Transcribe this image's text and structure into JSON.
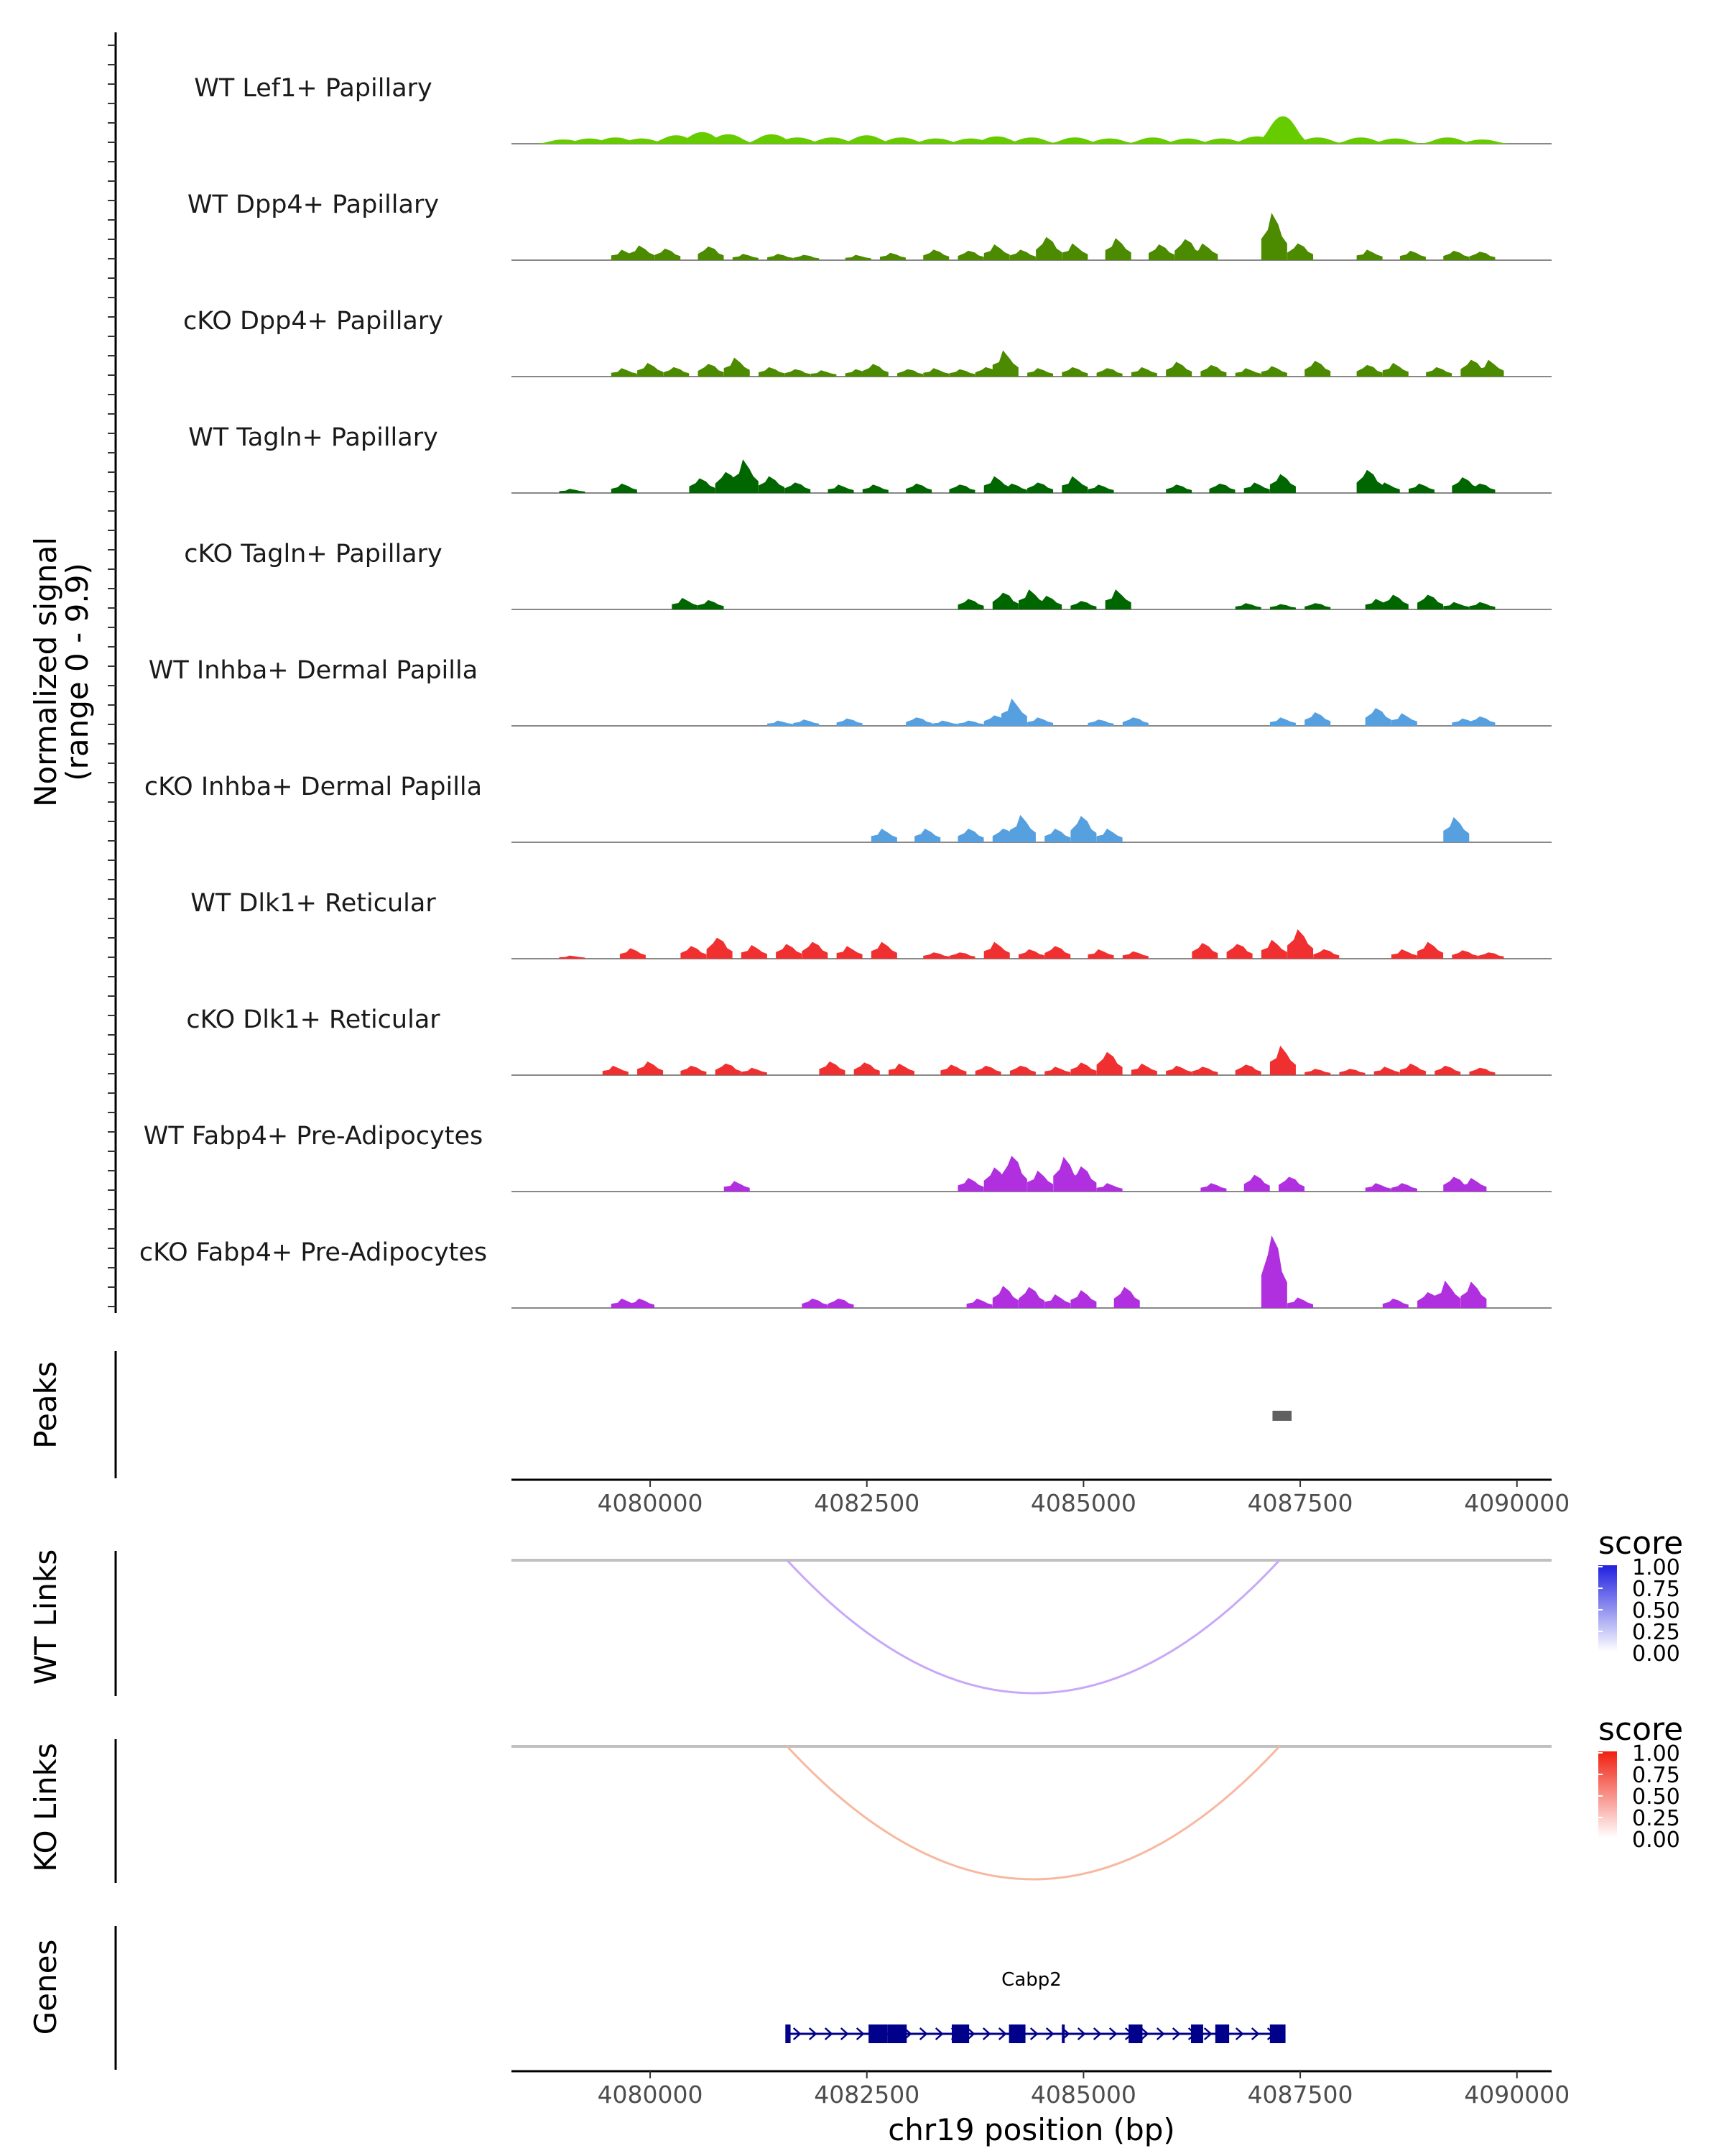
{
  "chart_data": {
    "type": "area",
    "title": "",
    "region": {
      "chrom": "chr19",
      "start": 4078400,
      "end": 4090400
    },
    "ylabel": "Normalized signal\n(range 0 - 9.9)",
    "ylabel_lines": [
      "Normalized signal",
      "(range 0 - 9.9)"
    ],
    "ylim": [
      0,
      9.9
    ],
    "xlabel": "chr19 position (bp)",
    "x_ticks": [
      4080000,
      4082500,
      4085000,
      4087500,
      4090000
    ],
    "x_tick_labels": [
      "4080000",
      "4082500",
      "4085000",
      "4087500",
      "4090000"
    ],
    "coverage_tracks": [
      {
        "label": "WT Lef1+ Papillary",
        "color": "#66CC00",
        "smooth": true,
        "peaks": [
          [
            4079000,
            0.4
          ],
          [
            4079300,
            0.5
          ],
          [
            4079600,
            0.6
          ],
          [
            4079900,
            0.5
          ],
          [
            4080300,
            0.8
          ],
          [
            4080600,
            1.1
          ],
          [
            4080900,
            0.9
          ],
          [
            4081400,
            0.9
          ],
          [
            4081700,
            0.6
          ],
          [
            4082100,
            0.6
          ],
          [
            4082500,
            0.8
          ],
          [
            4082900,
            0.6
          ],
          [
            4083300,
            0.5
          ],
          [
            4083700,
            0.5
          ],
          [
            4084000,
            0.7
          ],
          [
            4084400,
            0.6
          ],
          [
            4084900,
            0.6
          ],
          [
            4085300,
            0.5
          ],
          [
            4085800,
            0.6
          ],
          [
            4086200,
            0.5
          ],
          [
            4086600,
            0.5
          ],
          [
            4087000,
            0.7
          ],
          [
            4087300,
            2.6
          ],
          [
            4087700,
            0.6
          ],
          [
            4088200,
            0.6
          ],
          [
            4088600,
            0.5
          ],
          [
            4089200,
            0.6
          ],
          [
            4089600,
            0.4
          ]
        ]
      },
      {
        "label": "WT Dpp4+ Papillary",
        "color": "#4C8A00",
        "smooth": false,
        "peaks": [
          [
            4079700,
            1.0
          ],
          [
            4079900,
            1.4
          ],
          [
            4080200,
            1.1
          ],
          [
            4080700,
            1.3
          ],
          [
            4081100,
            0.6
          ],
          [
            4081500,
            0.6
          ],
          [
            4081800,
            0.5
          ],
          [
            4082400,
            0.5
          ],
          [
            4082800,
            0.7
          ],
          [
            4083300,
            1.0
          ],
          [
            4083700,
            0.9
          ],
          [
            4084000,
            1.5
          ],
          [
            4084300,
            1.0
          ],
          [
            4084600,
            2.2
          ],
          [
            4084900,
            1.6
          ],
          [
            4085400,
            2.1
          ],
          [
            4085900,
            1.5
          ],
          [
            4086200,
            2.0
          ],
          [
            4086400,
            1.6
          ],
          [
            4087200,
            4.5
          ],
          [
            4087500,
            1.6
          ],
          [
            4088300,
            1.0
          ],
          [
            4088800,
            0.9
          ],
          [
            4089300,
            0.9
          ],
          [
            4089600,
            0.8
          ]
        ]
      },
      {
        "label": "cKO Dpp4+ Papillary",
        "color": "#4C8A00",
        "smooth": false,
        "peaks": [
          [
            4079700,
            0.8
          ],
          [
            4080000,
            1.3
          ],
          [
            4080300,
            0.9
          ],
          [
            4080700,
            1.2
          ],
          [
            4081000,
            1.8
          ],
          [
            4081400,
            0.9
          ],
          [
            4081700,
            0.7
          ],
          [
            4082000,
            0.6
          ],
          [
            4082400,
            0.7
          ],
          [
            4082600,
            1.2
          ],
          [
            4083000,
            0.7
          ],
          [
            4083300,
            0.8
          ],
          [
            4083600,
            0.7
          ],
          [
            4083900,
            0.9
          ],
          [
            4084100,
            2.5
          ],
          [
            4084500,
            0.8
          ],
          [
            4084900,
            0.9
          ],
          [
            4085300,
            0.8
          ],
          [
            4085700,
            0.9
          ],
          [
            4086100,
            1.4
          ],
          [
            4086500,
            1.1
          ],
          [
            4086900,
            0.8
          ],
          [
            4087200,
            1.0
          ],
          [
            4087700,
            1.5
          ],
          [
            4088300,
            1.1
          ],
          [
            4088600,
            1.3
          ],
          [
            4089100,
            0.9
          ],
          [
            4089500,
            1.6
          ],
          [
            4089700,
            1.6
          ]
        ]
      },
      {
        "label": "WT Tagln+ Papillary",
        "color": "#006600",
        "smooth": false,
        "peaks": [
          [
            4079100,
            0.4
          ],
          [
            4079700,
            0.9
          ],
          [
            4080600,
            1.4
          ],
          [
            4080900,
            2.0
          ],
          [
            4081100,
            3.2
          ],
          [
            4081400,
            1.6
          ],
          [
            4081700,
            1.0
          ],
          [
            4082200,
            0.8
          ],
          [
            4082600,
            0.8
          ],
          [
            4083100,
            0.9
          ],
          [
            4083600,
            0.8
          ],
          [
            4084000,
            1.6
          ],
          [
            4084200,
            0.9
          ],
          [
            4084500,
            1.0
          ],
          [
            4084900,
            1.6
          ],
          [
            4085200,
            0.8
          ],
          [
            4086100,
            0.8
          ],
          [
            4086600,
            0.9
          ],
          [
            4087000,
            1.0
          ],
          [
            4087300,
            1.8
          ],
          [
            4088300,
            2.2
          ],
          [
            4088500,
            1.0
          ],
          [
            4088900,
            0.9
          ],
          [
            4089400,
            1.5
          ],
          [
            4089600,
            0.9
          ]
        ]
      },
      {
        "label": "cKO Tagln+ Papillary",
        "color": "#006600",
        "smooth": false,
        "peaks": [
          [
            4080400,
            1.1
          ],
          [
            4080700,
            0.9
          ],
          [
            4083700,
            1.0
          ],
          [
            4084100,
            1.6
          ],
          [
            4084400,
            1.9
          ],
          [
            4084600,
            1.3
          ],
          [
            4085000,
            0.8
          ],
          [
            4085400,
            1.9
          ],
          [
            4086900,
            0.6
          ],
          [
            4087300,
            0.5
          ],
          [
            4087700,
            0.6
          ],
          [
            4088400,
            1.0
          ],
          [
            4088600,
            1.4
          ],
          [
            4089000,
            1.4
          ],
          [
            4089300,
            0.7
          ],
          [
            4089600,
            0.7
          ]
        ]
      },
      {
        "label": "WT Inhba+ Dermal Papilla",
        "color": "#56A0E0",
        "smooth": false,
        "peaks": [
          [
            4081500,
            0.5
          ],
          [
            4081800,
            0.6
          ],
          [
            4082300,
            0.7
          ],
          [
            4083100,
            0.8
          ],
          [
            4083400,
            0.5
          ],
          [
            4083700,
            0.5
          ],
          [
            4084000,
            1.0
          ],
          [
            4084200,
            2.6
          ],
          [
            4084500,
            0.8
          ],
          [
            4085200,
            0.6
          ],
          [
            4085600,
            0.8
          ],
          [
            4087300,
            0.8
          ],
          [
            4087700,
            1.3
          ],
          [
            4088400,
            1.7
          ],
          [
            4088700,
            1.2
          ],
          [
            4089400,
            0.7
          ],
          [
            4089600,
            0.9
          ]
        ]
      },
      {
        "label": "cKO Inhba+ Dermal Papilla",
        "color": "#56A0E0",
        "smooth": false,
        "peaks": [
          [
            4082700,
            1.3
          ],
          [
            4083200,
            1.3
          ],
          [
            4083700,
            1.3
          ],
          [
            4084100,
            1.3
          ],
          [
            4084300,
            2.6
          ],
          [
            4084700,
            1.3
          ],
          [
            4085000,
            2.5
          ],
          [
            4085300,
            1.3
          ],
          [
            4089300,
            2.4
          ]
        ]
      },
      {
        "label": "WT Dlk1+ Reticular",
        "color": "#F03030",
        "smooth": false,
        "peaks": [
          [
            4079100,
            0.3
          ],
          [
            4079800,
            1.0
          ],
          [
            4080500,
            1.2
          ],
          [
            4080800,
            2.0
          ],
          [
            4081200,
            1.3
          ],
          [
            4081600,
            1.4
          ],
          [
            4081900,
            1.6
          ],
          [
            4082300,
            1.2
          ],
          [
            4082700,
            1.6
          ],
          [
            4083300,
            0.6
          ],
          [
            4083600,
            0.6
          ],
          [
            4084000,
            1.6
          ],
          [
            4084400,
            0.9
          ],
          [
            4084700,
            1.2
          ],
          [
            4085200,
            0.9
          ],
          [
            4085600,
            0.7
          ],
          [
            4086400,
            1.5
          ],
          [
            4086800,
            1.4
          ],
          [
            4087200,
            1.8
          ],
          [
            4087500,
            2.8
          ],
          [
            4087800,
            0.9
          ],
          [
            4088700,
            0.9
          ],
          [
            4089000,
            1.6
          ],
          [
            4089400,
            0.8
          ],
          [
            4089700,
            0.6
          ]
        ]
      },
      {
        "label": "cKO Dlk1+ Reticular",
        "color": "#F03030",
        "smooth": false,
        "peaks": [
          [
            4079600,
            0.9
          ],
          [
            4080000,
            1.3
          ],
          [
            4080500,
            0.9
          ],
          [
            4080900,
            1.1
          ],
          [
            4081200,
            0.7
          ],
          [
            4082100,
            1.3
          ],
          [
            4082500,
            1.2
          ],
          [
            4082900,
            1.1
          ],
          [
            4083500,
            1.0
          ],
          [
            4083900,
            0.9
          ],
          [
            4084300,
            0.9
          ],
          [
            4084700,
            0.8
          ],
          [
            4085000,
            1.2
          ],
          [
            4085300,
            2.2
          ],
          [
            4085700,
            1.1
          ],
          [
            4086100,
            0.9
          ],
          [
            4086400,
            0.8
          ],
          [
            4086900,
            1.0
          ],
          [
            4087300,
            2.8
          ],
          [
            4087700,
            0.6
          ],
          [
            4088100,
            0.6
          ],
          [
            4088500,
            0.8
          ],
          [
            4088800,
            1.1
          ],
          [
            4089200,
            0.9
          ],
          [
            4089600,
            0.7
          ]
        ]
      },
      {
        "label": "WT Fabp4+ Pre-Adipocytes",
        "color": "#B030E0",
        "smooth": false,
        "peaks": [
          [
            4081000,
            1.0
          ],
          [
            4083700,
            1.3
          ],
          [
            4084000,
            2.3
          ],
          [
            4084200,
            3.4
          ],
          [
            4084500,
            2.0
          ],
          [
            4084800,
            3.3
          ],
          [
            4085000,
            2.4
          ],
          [
            4085300,
            0.8
          ],
          [
            4086500,
            0.8
          ],
          [
            4087000,
            1.6
          ],
          [
            4087400,
            1.4
          ],
          [
            4088400,
            0.8
          ],
          [
            4088700,
            0.8
          ],
          [
            4089300,
            1.4
          ],
          [
            4089500,
            1.3
          ]
        ]
      },
      {
        "label": "cKO Fabp4+ Pre-Adipocytes",
        "color": "#B030E0",
        "smooth": false,
        "peaks": [
          [
            4079700,
            0.9
          ],
          [
            4079900,
            0.9
          ],
          [
            4081900,
            0.9
          ],
          [
            4082200,
            0.9
          ],
          [
            4083800,
            0.9
          ],
          [
            4084100,
            2.1
          ],
          [
            4084400,
            2.0
          ],
          [
            4084700,
            1.3
          ],
          [
            4085000,
            1.7
          ],
          [
            4085500,
            2.0
          ],
          [
            4087200,
            6.9
          ],
          [
            4087500,
            1.0
          ],
          [
            4088600,
            0.9
          ],
          [
            4089000,
            1.5
          ],
          [
            4089200,
            2.6
          ],
          [
            4089500,
            2.5
          ]
        ]
      }
    ],
    "peak_track": {
      "label": "Peaks",
      "regions": [
        [
          4087180,
          4087400
        ]
      ],
      "color": "#606060"
    },
    "link_tracks": [
      {
        "label": "WT Links",
        "start": 4081580,
        "end": 4087260,
        "score": 0.35,
        "color": "#C8A8F8",
        "legend_title": "score",
        "legend_high_color": "#2020E0",
        "legend_ticks": [
          "1.00",
          "0.75",
          "0.50",
          "0.25",
          "0.00"
        ]
      },
      {
        "label": "KO Links",
        "start": 4081580,
        "end": 4087260,
        "score": 0.4,
        "color": "#F8B8A0",
        "legend_title": "score",
        "legend_high_color": "#F02010",
        "legend_ticks": [
          "1.00",
          "0.75",
          "0.50",
          "0.25",
          "0.00"
        ]
      }
    ],
    "gene_track": {
      "label": "Genes",
      "gene": "Cabp2",
      "start": 4081580,
      "end": 4087300,
      "color": "#00008B",
      "exons": [
        [
          4081560,
          4081620
        ],
        [
          4082520,
          4082740
        ],
        [
          4082740,
          4082960
        ],
        [
          4083480,
          4083680
        ],
        [
          4084140,
          4084330
        ],
        [
          4084750,
          4084770
        ],
        [
          4085520,
          4085680
        ],
        [
          4086240,
          4086380
        ],
        [
          4086520,
          4086680
        ],
        [
          4087150,
          4087330
        ]
      ]
    }
  }
}
